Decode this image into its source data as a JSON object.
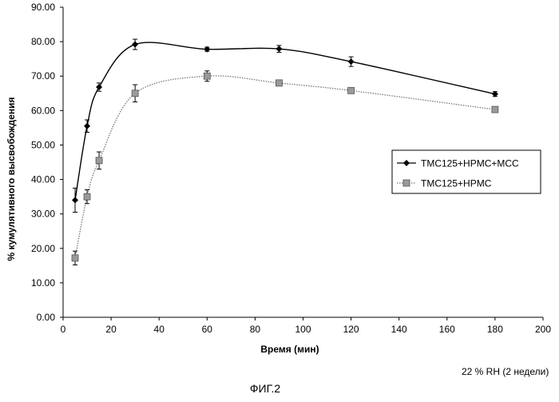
{
  "chart_data": {
    "type": "line",
    "title": "",
    "xlabel": "Время (мин)",
    "ylabel": "% кумулятивного высвобождения",
    "xlim": [
      0,
      200
    ],
    "ylim": [
      0,
      90
    ],
    "x_ticks": [
      0,
      20,
      40,
      60,
      80,
      100,
      120,
      140,
      160,
      180,
      200
    ],
    "x_tick_labels": [
      "0",
      "20",
      "40",
      "60",
      "80",
      "100",
      "120",
      "140",
      "160",
      "180",
      "200"
    ],
    "y_ticks": [
      0,
      10,
      20,
      30,
      40,
      50,
      60,
      70,
      80,
      90
    ],
    "y_tick_labels": [
      "0.00",
      "10.00",
      "20.00",
      "30.00",
      "40.00",
      "50.00",
      "60.00",
      "70.00",
      "80.00",
      "90.00"
    ],
    "grid": false,
    "legend_position": "right",
    "series": [
      {
        "name": "TMC125+HPMC+MCC",
        "marker": "diamond",
        "line_style": "solid",
        "color": "#000000",
        "x": [
          5,
          10,
          15,
          30,
          60,
          90,
          120,
          180
        ],
        "y": [
          34.0,
          55.5,
          66.8,
          79.2,
          77.8,
          77.9,
          74.2,
          64.8
        ],
        "error": [
          3.5,
          1.8,
          1.2,
          1.5,
          0.6,
          1.0,
          1.4,
          0.7
        ]
      },
      {
        "name": "TMC125+HPMC",
        "marker": "square",
        "line_style": "dotted",
        "color": "#808080",
        "x": [
          5,
          10,
          15,
          30,
          60,
          90,
          120,
          180
        ],
        "y": [
          17.2,
          35.0,
          45.5,
          65.0,
          70.0,
          68.0,
          65.8,
          60.3
        ],
        "error": [
          2.0,
          2.0,
          2.5,
          2.5,
          1.5,
          0.6,
          0.6,
          0.5
        ]
      }
    ]
  },
  "footer": {
    "condition_note": "22 % RH (2 недели)",
    "figure_caption": "ФИГ.2"
  }
}
